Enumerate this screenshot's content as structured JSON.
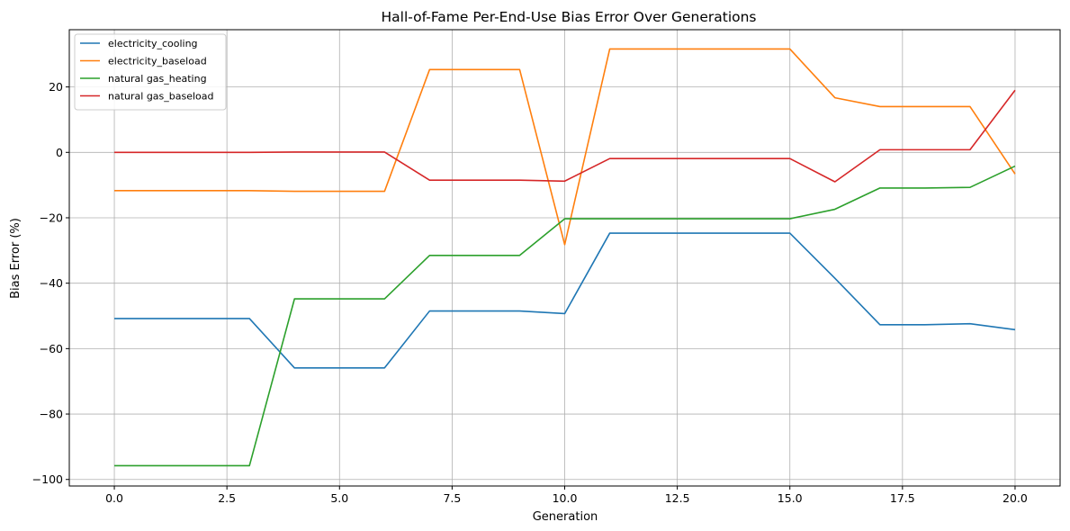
{
  "chart_data": {
    "type": "line",
    "title": "Hall-of-Fame Per-End-Use Bias Error Over Generations",
    "xlabel": "Generation",
    "ylabel": "Bias Error (%)",
    "xlim": [
      -1,
      21
    ],
    "ylim": [
      -102,
      37.5
    ],
    "x_ticks": [
      0,
      2.5,
      5,
      7.5,
      10,
      12.5,
      15,
      17.5,
      20
    ],
    "x_tick_labels": [
      "0.0",
      "2.5",
      "5.0",
      "7.5",
      "10.0",
      "12.5",
      "15.0",
      "17.5",
      "20.0"
    ],
    "y_ticks": [
      -100,
      -80,
      -60,
      -40,
      -20,
      0,
      20
    ],
    "y_tick_labels": [
      "−100",
      "−80",
      "−60",
      "−40",
      "−20",
      "0",
      "20"
    ],
    "grid": true,
    "legend_position": "top-left",
    "x": [
      0,
      1,
      2,
      3,
      4,
      5,
      6,
      7,
      8,
      9,
      10,
      11,
      12,
      13,
      14,
      15,
      16,
      17,
      18,
      19,
      20
    ],
    "series": [
      {
        "name": "electricity_cooling",
        "color": "#1f77b4",
        "values": [
          -50.8,
          -50.8,
          -50.8,
          -50.8,
          -65.9,
          -65.9,
          -65.9,
          -48.5,
          -48.5,
          -48.5,
          -49.3,
          -24.7,
          -24.7,
          -24.7,
          -24.7,
          -24.7,
          -38.5,
          -52.7,
          -52.7,
          -52.4,
          -54.2
        ]
      },
      {
        "name": "electricity_baseload",
        "color": "#ff7f0e",
        "values": [
          -11.7,
          -11.7,
          -11.7,
          -11.7,
          -11.9,
          -11.9,
          -11.9,
          25.3,
          25.3,
          25.3,
          -28.2,
          31.6,
          31.6,
          31.6,
          31.6,
          31.6,
          16.7,
          14.0,
          14.0,
          14.0,
          -6.6
        ]
      },
      {
        "name": "natural gas_heating",
        "color": "#2ca02c",
        "values": [
          -95.8,
          -95.8,
          -95.8,
          -95.8,
          -44.8,
          -44.8,
          -44.8,
          -31.5,
          -31.5,
          -31.5,
          -20.3,
          -20.3,
          -20.3,
          -20.3,
          -20.3,
          -20.3,
          -17.4,
          -10.9,
          -10.9,
          -10.7,
          -4.2
        ]
      },
      {
        "name": "natural gas_baseload",
        "color": "#d62728",
        "values": [
          0.0,
          0.0,
          0.0,
          0.0,
          0.1,
          0.1,
          0.1,
          -8.5,
          -8.5,
          -8.5,
          -8.8,
          -1.9,
          -1.9,
          -1.9,
          -1.9,
          -1.9,
          -9.0,
          0.8,
          0.8,
          0.8,
          19.0
        ]
      }
    ]
  }
}
